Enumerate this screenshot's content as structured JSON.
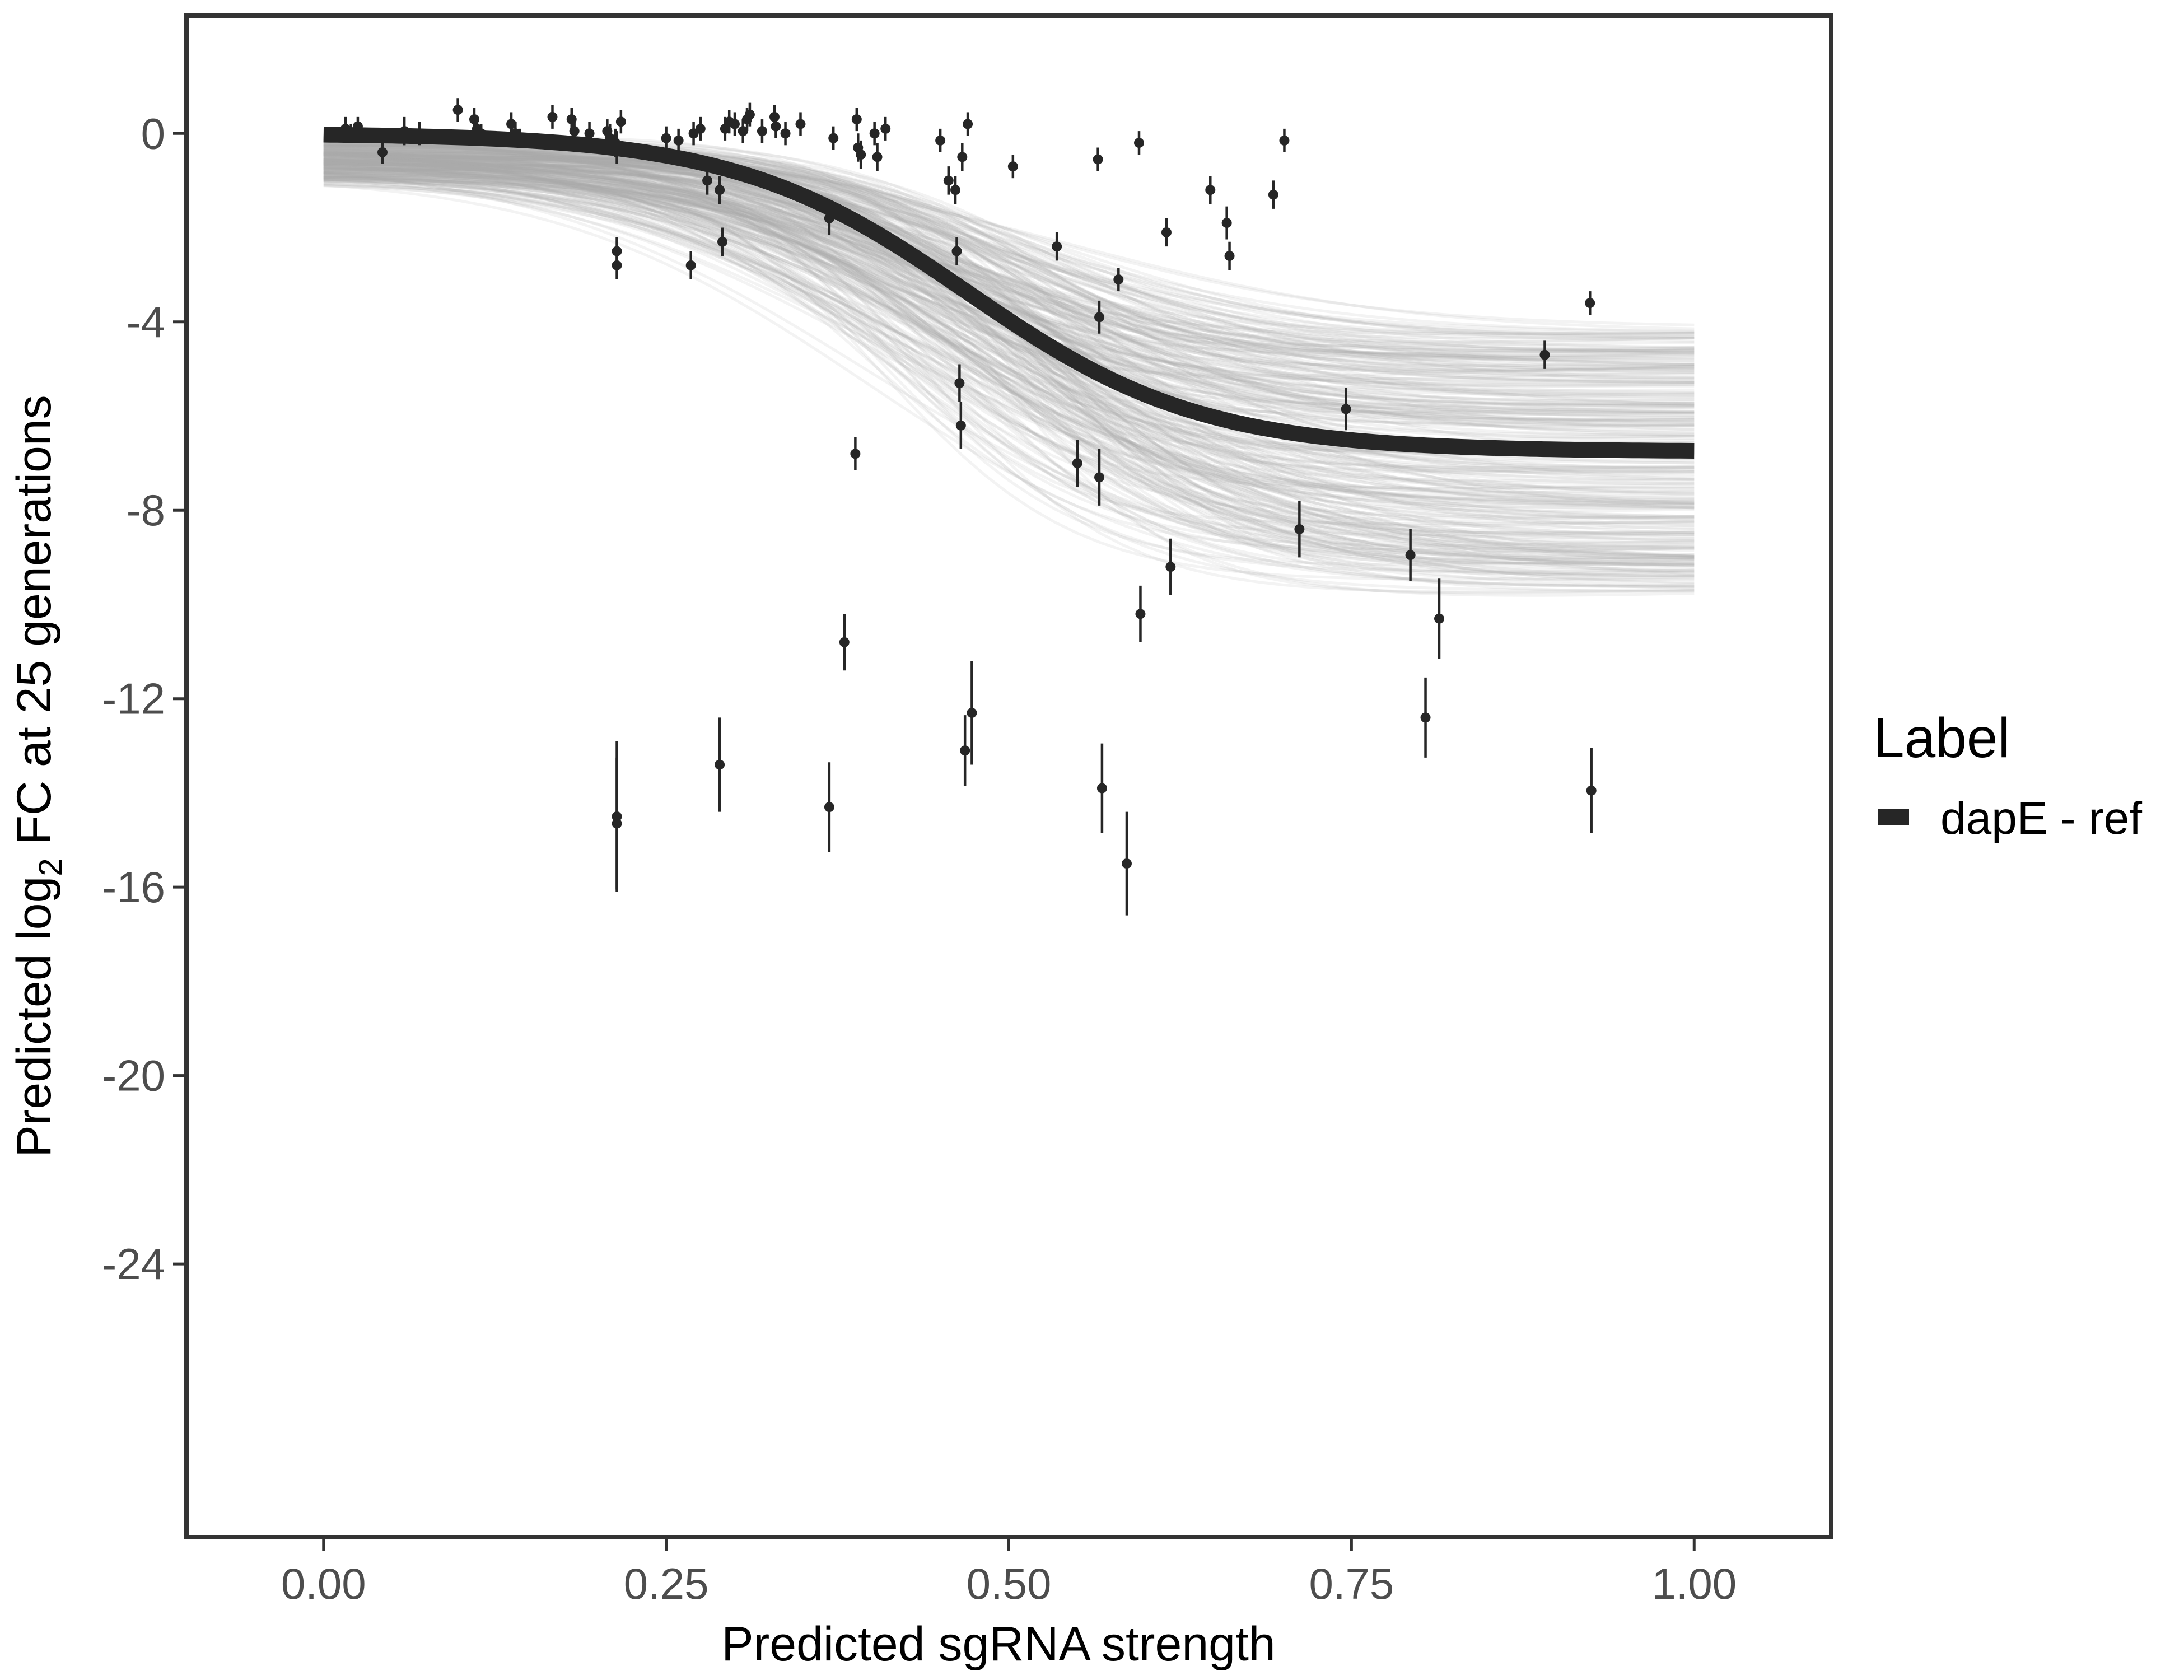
{
  "chart_data": {
    "type": "scatter",
    "title": "",
    "xlabel": "Predicted sgRNA strength",
    "ylabel": {
      "prefix": "Predicted  log",
      "subscript": "2",
      "suffix": " FC at 25 generations"
    },
    "xlim": [
      -0.1,
      1.1
    ],
    "ylim": [
      -29.8,
      2.5
    ],
    "x_ticks": [
      0.0,
      0.25,
      0.5,
      0.75,
      1.0
    ],
    "x_tick_labels": [
      "0.00",
      "0.25",
      "0.50",
      "0.75",
      "1.00"
    ],
    "y_ticks": [
      0,
      -4,
      -8,
      -12,
      -16,
      -20,
      -24
    ],
    "y_tick_labels": [
      "0",
      "-4",
      "-8",
      "-12",
      "-16",
      "-20",
      "-24"
    ],
    "grid": false,
    "legend": {
      "title": "Label",
      "position": "right",
      "entries": [
        {
          "label": "dapE - ref",
          "color": "#262626"
        }
      ]
    },
    "fit_curve": {
      "name": "dapE - ref",
      "color": "#262626",
      "model": "logistic",
      "asymptote_high": 0.0,
      "asymptote_low": -6.75,
      "midpoint": 0.47,
      "scale": 0.085
    },
    "posterior_band": {
      "color": "#aaaaaa",
      "draws": 300,
      "at_zero": [
        -1.5,
        0.0
      ],
      "at_one": [
        -9.8,
        -4.1
      ]
    },
    "points": [
      {
        "x": 0.016,
        "y": 0.1,
        "err": 0.25
      },
      {
        "x": 0.02,
        "y": 0.0,
        "err": 0.2
      },
      {
        "x": 0.025,
        "y": 0.15,
        "err": 0.2
      },
      {
        "x": 0.043,
        "y": -0.4,
        "err": 0.25
      },
      {
        "x": 0.059,
        "y": 0.05,
        "err": 0.3
      },
      {
        "x": 0.07,
        "y": 0.0,
        "err": 0.25
      },
      {
        "x": 0.098,
        "y": 0.5,
        "err": 0.25
      },
      {
        "x": 0.11,
        "y": 0.3,
        "err": 0.25
      },
      {
        "x": 0.112,
        "y": 0.1,
        "err": 0.25
      },
      {
        "x": 0.115,
        "y": 0.0,
        "err": 0.2
      },
      {
        "x": 0.137,
        "y": 0.2,
        "err": 0.25
      },
      {
        "x": 0.14,
        "y": 0.0,
        "err": 0.25
      },
      {
        "x": 0.143,
        "y": -0.1,
        "err": 0.2
      },
      {
        "x": 0.167,
        "y": 0.35,
        "err": 0.25
      },
      {
        "x": 0.181,
        "y": 0.3,
        "err": 0.25
      },
      {
        "x": 0.183,
        "y": 0.05,
        "err": 0.3
      },
      {
        "x": 0.194,
        "y": 0.0,
        "err": 0.25
      },
      {
        "x": 0.207,
        "y": 0.05,
        "err": 0.25
      },
      {
        "x": 0.209,
        "y": -0.1,
        "err": 0.3
      },
      {
        "x": 0.213,
        "y": -0.2,
        "err": 0.3
      },
      {
        "x": 0.214,
        "y": -0.3,
        "err": 0.35
      },
      {
        "x": 0.217,
        "y": 0.25,
        "err": 0.25
      },
      {
        "x": 0.214,
        "y": -2.5,
        "err": 0.3
      },
      {
        "x": 0.214,
        "y": -2.8,
        "err": 0.3
      },
      {
        "x": 0.214,
        "y": -14.5,
        "err": 1.6
      },
      {
        "x": 0.214,
        "y": -14.65,
        "err": 1.4
      },
      {
        "x": 0.25,
        "y": -0.1,
        "err": 0.25
      },
      {
        "x": 0.259,
        "y": -0.15,
        "err": 0.25
      },
      {
        "x": 0.268,
        "y": -2.8,
        "err": 0.3
      },
      {
        "x": 0.27,
        "y": 0.0,
        "err": 0.25
      },
      {
        "x": 0.275,
        "y": 0.1,
        "err": 0.25
      },
      {
        "x": 0.28,
        "y": -1.0,
        "err": 0.3
      },
      {
        "x": 0.289,
        "y": -1.2,
        "err": 0.3
      },
      {
        "x": 0.289,
        "y": -13.4,
        "err": 1.0
      },
      {
        "x": 0.291,
        "y": -2.3,
        "err": 0.3
      },
      {
        "x": 0.293,
        "y": 0.1,
        "err": 0.25
      },
      {
        "x": 0.296,
        "y": 0.25,
        "err": 0.25
      },
      {
        "x": 0.3,
        "y": 0.2,
        "err": 0.25
      },
      {
        "x": 0.306,
        "y": 0.05,
        "err": 0.25
      },
      {
        "x": 0.309,
        "y": 0.3,
        "err": 0.25
      },
      {
        "x": 0.311,
        "y": 0.4,
        "err": 0.25
      },
      {
        "x": 0.32,
        "y": 0.05,
        "err": 0.25
      },
      {
        "x": 0.329,
        "y": 0.35,
        "err": 0.25
      },
      {
        "x": 0.33,
        "y": 0.15,
        "err": 0.25
      },
      {
        "x": 0.337,
        "y": 0.0,
        "err": 0.25
      },
      {
        "x": 0.348,
        "y": 0.2,
        "err": 0.25
      },
      {
        "x": 0.369,
        "y": -1.8,
        "err": 0.35
      },
      {
        "x": 0.369,
        "y": -14.3,
        "err": 0.95
      },
      {
        "x": 0.372,
        "y": -0.1,
        "err": 0.25
      },
      {
        "x": 0.38,
        "y": -10.8,
        "err": 0.6
      },
      {
        "x": 0.388,
        "y": -6.8,
        "err": 0.35
      },
      {
        "x": 0.389,
        "y": 0.3,
        "err": 0.25
      },
      {
        "x": 0.39,
        "y": -0.3,
        "err": 0.3
      },
      {
        "x": 0.392,
        "y": -0.45,
        "err": 0.3
      },
      {
        "x": 0.402,
        "y": 0.0,
        "err": 0.25
      },
      {
        "x": 0.404,
        "y": -0.5,
        "err": 0.3
      },
      {
        "x": 0.41,
        "y": 0.1,
        "err": 0.25
      },
      {
        "x": 0.45,
        "y": -0.15,
        "err": 0.25
      },
      {
        "x": 0.456,
        "y": -1.0,
        "err": 0.3
      },
      {
        "x": 0.461,
        "y": -1.2,
        "err": 0.3
      },
      {
        "x": 0.462,
        "y": -2.5,
        "err": 0.3
      },
      {
        "x": 0.464,
        "y": -5.3,
        "err": 0.4
      },
      {
        "x": 0.465,
        "y": -6.2,
        "err": 0.5
      },
      {
        "x": 0.466,
        "y": -0.5,
        "err": 0.3
      },
      {
        "x": 0.468,
        "y": -13.1,
        "err": 0.75
      },
      {
        "x": 0.47,
        "y": 0.2,
        "err": 0.25
      },
      {
        "x": 0.473,
        "y": -12.3,
        "err": 1.1
      },
      {
        "x": 0.503,
        "y": -0.7,
        "err": 0.25
      },
      {
        "x": 0.535,
        "y": -2.4,
        "err": 0.3
      },
      {
        "x": 0.55,
        "y": -7.0,
        "err": 0.5
      },
      {
        "x": 0.565,
        "y": -0.55,
        "err": 0.25
      },
      {
        "x": 0.566,
        "y": -3.9,
        "err": 0.35
      },
      {
        "x": 0.566,
        "y": -7.3,
        "err": 0.6
      },
      {
        "x": 0.568,
        "y": -13.9,
        "err": 0.95
      },
      {
        "x": 0.58,
        "y": -3.1,
        "err": 0.25
      },
      {
        "x": 0.586,
        "y": -15.5,
        "err": 1.1
      },
      {
        "x": 0.595,
        "y": -0.2,
        "err": 0.25
      },
      {
        "x": 0.596,
        "y": -10.2,
        "err": 0.6
      },
      {
        "x": 0.615,
        "y": -2.1,
        "err": 0.3
      },
      {
        "x": 0.618,
        "y": -9.2,
        "err": 0.6
      },
      {
        "x": 0.647,
        "y": -1.2,
        "err": 0.3
      },
      {
        "x": 0.659,
        "y": -1.9,
        "err": 0.35
      },
      {
        "x": 0.661,
        "y": -2.6,
        "err": 0.3
      },
      {
        "x": 0.693,
        "y": -1.3,
        "err": 0.3
      },
      {
        "x": 0.701,
        "y": -0.15,
        "err": 0.25
      },
      {
        "x": 0.712,
        "y": -8.4,
        "err": 0.6
      },
      {
        "x": 0.746,
        "y": -5.85,
        "err": 0.45
      },
      {
        "x": 0.793,
        "y": -8.95,
        "err": 0.55
      },
      {
        "x": 0.804,
        "y": -12.4,
        "err": 0.85
      },
      {
        "x": 0.814,
        "y": -10.3,
        "err": 0.85
      },
      {
        "x": 0.891,
        "y": -4.7,
        "err": 0.3
      },
      {
        "x": 0.924,
        "y": -3.6,
        "err": 0.25
      },
      {
        "x": 0.925,
        "y": -13.95,
        "err": 0.9
      }
    ]
  }
}
